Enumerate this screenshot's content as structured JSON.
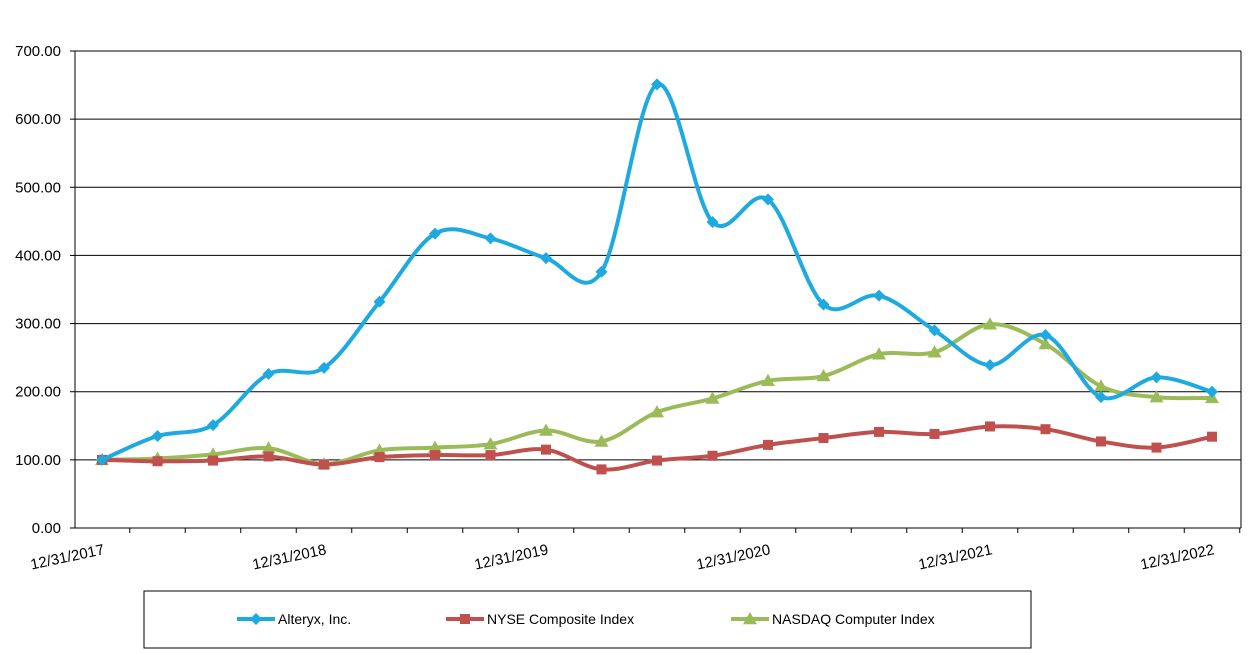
{
  "chart_data": {
    "type": "line",
    "title": "",
    "xlabel": "",
    "ylabel": "",
    "ylim": [
      0,
      700
    ],
    "y_ticks": [
      "0.00",
      "100.00",
      "200.00",
      "300.00",
      "400.00",
      "500.00",
      "600.00",
      "700.00"
    ],
    "x_tick_labels": [
      "12/31/2017",
      "12/31/2018",
      "12/31/2019",
      "12/31/2020",
      "12/31/2021",
      "12/31/2022"
    ],
    "x": [
      "12/31/2017",
      "3/31/2018",
      "6/30/2018",
      "9/30/2018",
      "12/31/2018",
      "3/31/2019",
      "6/30/2019",
      "9/30/2019",
      "12/31/2019",
      "3/31/2020",
      "6/30/2020",
      "9/30/2020",
      "12/31/2020",
      "3/31/2021",
      "6/30/2021",
      "9/30/2021",
      "12/31/2021",
      "3/31/2022",
      "6/30/2022",
      "9/30/2022",
      "12/31/2022"
    ],
    "grid": true,
    "legend_position": "bottom",
    "series": [
      {
        "name": "Alteryx, Inc.",
        "color": "#1EAAE1",
        "marker": "diamond",
        "values": [
          100,
          135,
          151,
          226,
          235,
          332,
          432,
          425,
          396,
          376,
          651,
          449,
          482,
          328,
          341,
          290,
          239,
          283,
          192,
          221,
          200
        ]
      },
      {
        "name": "NYSE Composite Index",
        "color": "#C0504D",
        "marker": "square",
        "values": [
          100,
          98,
          99,
          105,
          93,
          104,
          107,
          107,
          115,
          86,
          99,
          106,
          122,
          132,
          141,
          138,
          149,
          145,
          127,
          118,
          134
        ]
      },
      {
        "name": "NASDAQ Computer Index",
        "color": "#9BBB59",
        "marker": "triangle",
        "values": [
          100,
          102,
          108,
          117,
          94,
          114,
          118,
          123,
          143,
          127,
          170,
          190,
          216,
          223,
          255,
          258,
          299,
          270,
          208,
          192,
          191
        ]
      }
    ]
  }
}
